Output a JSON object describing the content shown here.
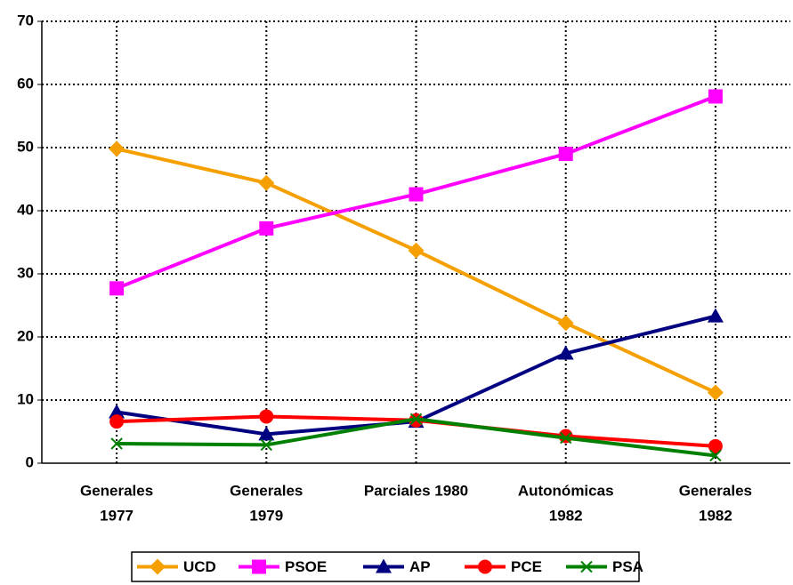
{
  "chart_data": {
    "type": "line",
    "categories": [
      [
        "Generales",
        "1977"
      ],
      [
        "Generales",
        "1979"
      ],
      [
        "Parciales 1980"
      ],
      [
        "Autonómicas",
        "1982"
      ],
      [
        "Generales",
        "1982"
      ]
    ],
    "series": [
      {
        "name": "UCD",
        "color": "#f5a000",
        "marker": "diamond",
        "values": [
          49.8,
          44.4,
          33.7,
          22.2,
          11.2
        ]
      },
      {
        "name": "PSOE",
        "color": "#ff00ff",
        "marker": "square",
        "values": [
          27.7,
          37.2,
          42.6,
          49.0,
          58.1
        ]
      },
      {
        "name": "AP",
        "color": "#000080",
        "marker": "triangle",
        "values": [
          8.1,
          4.6,
          6.6,
          17.4,
          23.3
        ]
      },
      {
        "name": "PCE",
        "color": "#ff0000",
        "marker": "circle",
        "values": [
          6.6,
          7.4,
          6.8,
          4.3,
          2.7
        ]
      },
      {
        "name": "PSA",
        "color": "#008000",
        "marker": "x",
        "values": [
          3.1,
          2.9,
          7.0,
          4.0,
          1.2
        ]
      }
    ],
    "ylim": [
      0,
      70
    ],
    "yticks": [
      0,
      10,
      20,
      30,
      40,
      50,
      60,
      70
    ],
    "grid": true,
    "legend": "bottom"
  }
}
